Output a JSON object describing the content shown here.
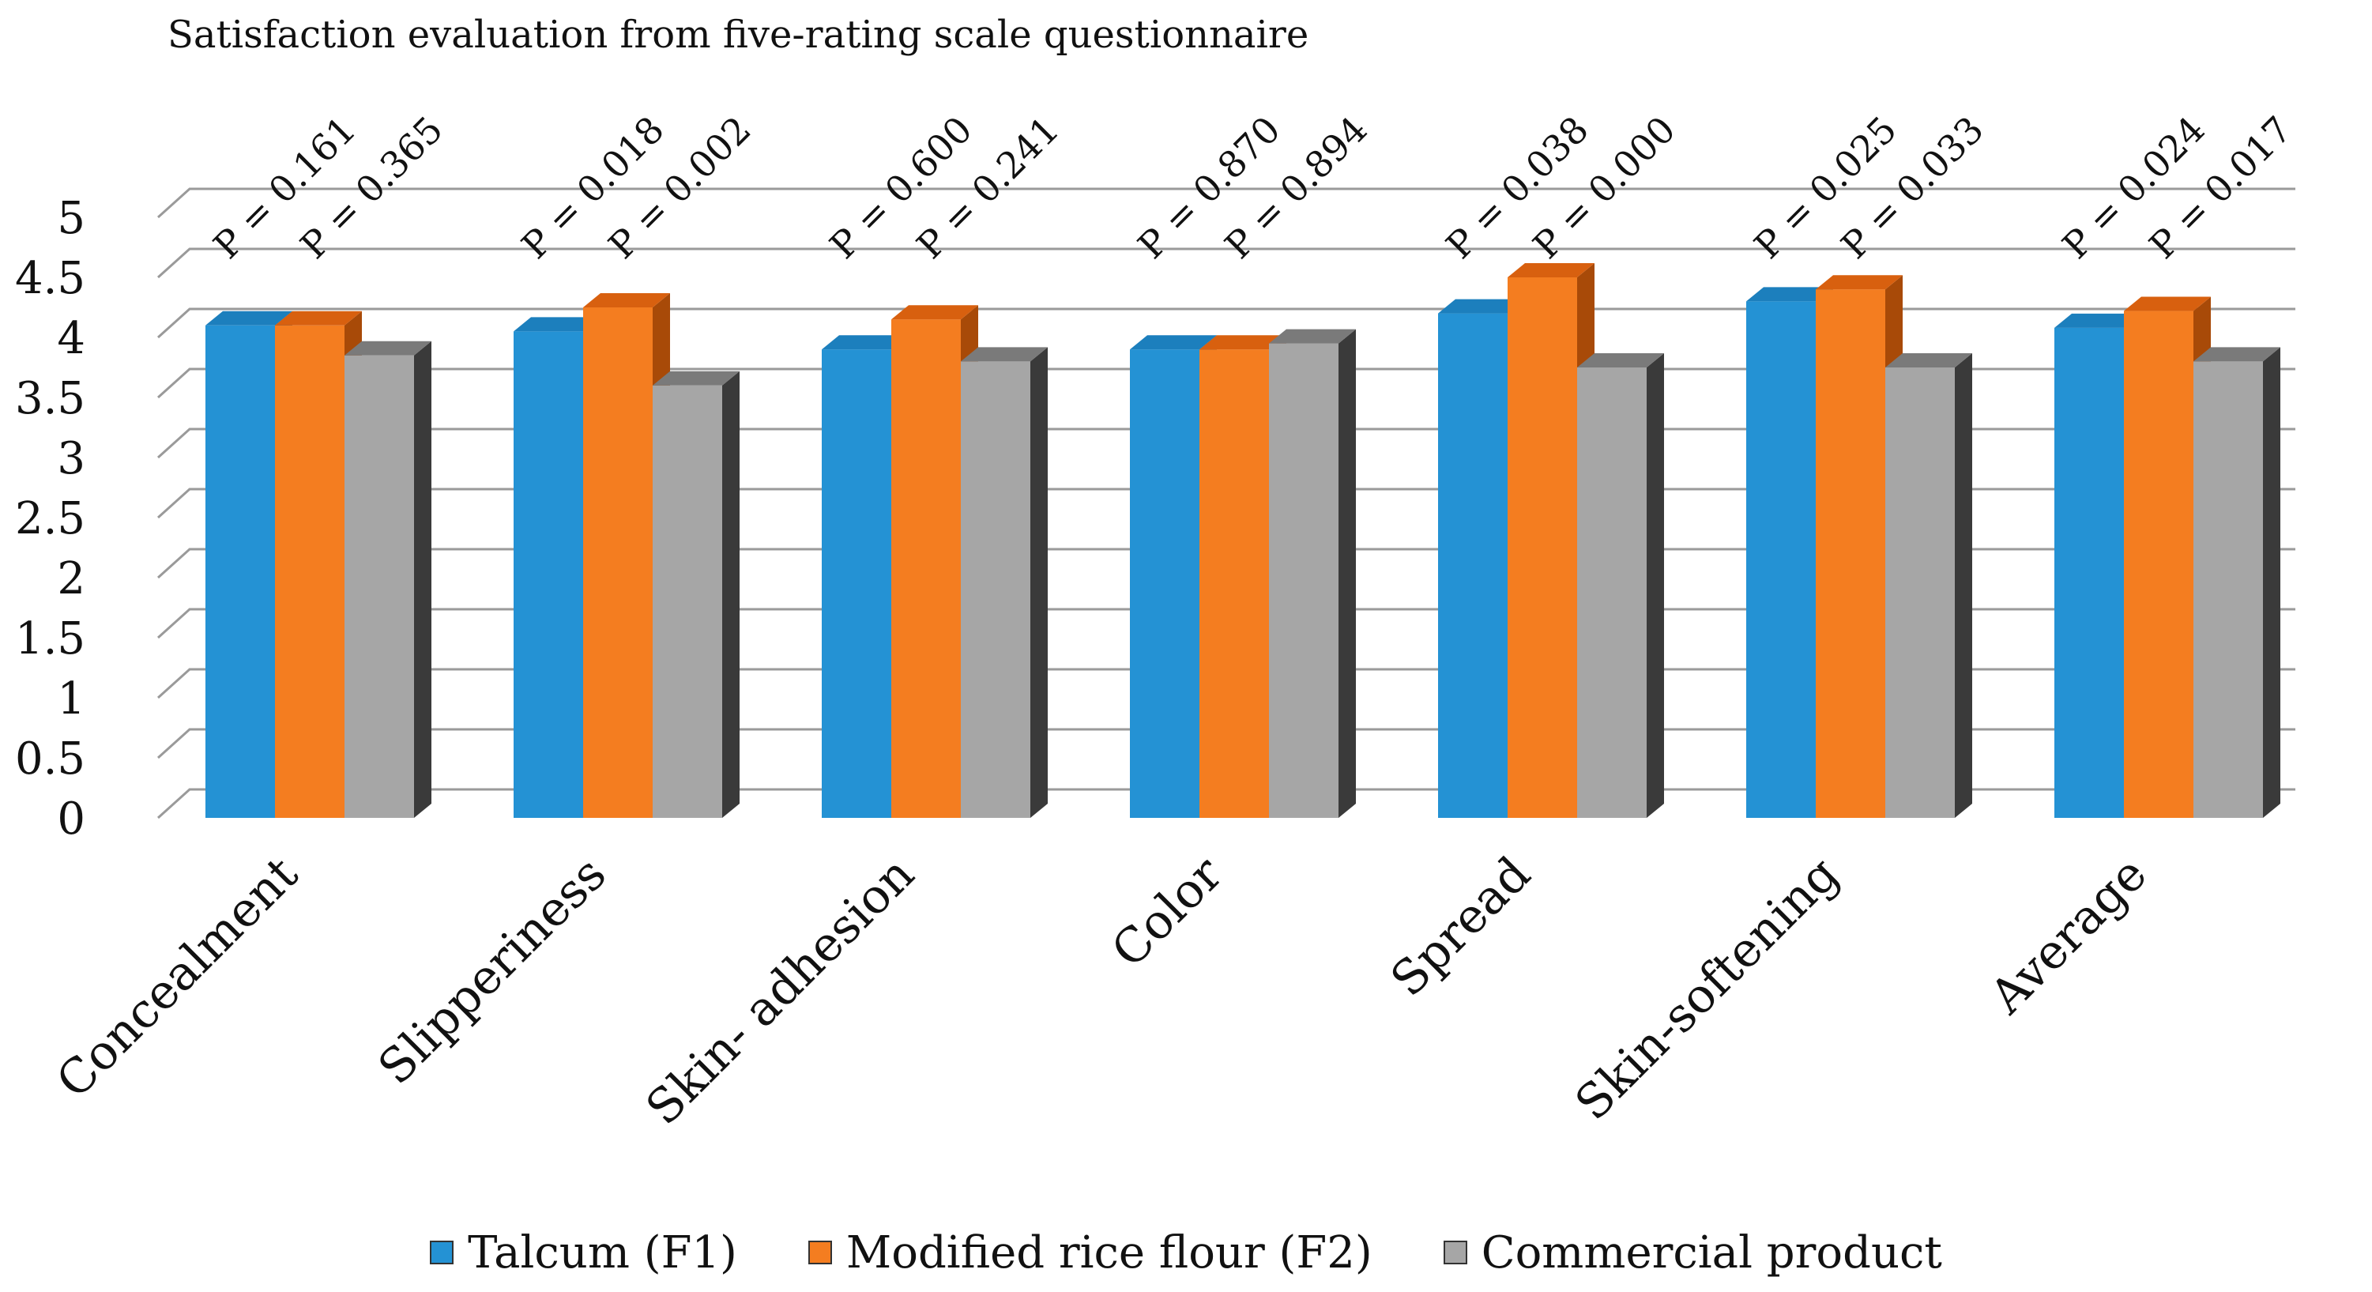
{
  "chart_data": {
    "type": "bar",
    "title": "Satisfaction evaluation from five-rating scale questionnaire",
    "categories": [
      "Concealment",
      "Slipperiness",
      "Skin- adhesion",
      "Color",
      "Spread",
      "Skin-softening",
      "Average"
    ],
    "series": [
      {
        "name": "Talcum (F1)",
        "values": [
          4.1,
          4.05,
          3.9,
          3.9,
          4.2,
          4.3,
          4.08
        ]
      },
      {
        "name": "Modified rice flour (F2)",
        "values": [
          4.1,
          4.25,
          4.15,
          3.9,
          4.5,
          4.4,
          4.22
        ]
      },
      {
        "name": "Commercial product",
        "values": [
          3.85,
          3.6,
          3.8,
          3.95,
          3.75,
          3.75,
          3.8
        ]
      }
    ],
    "p_values": [
      [
        "P = 0.161",
        "P = 0.365"
      ],
      [
        "P = 0.018",
        "P = 0.002"
      ],
      [
        "P = 0.600",
        "P = 0.241"
      ],
      [
        "P = 0.870",
        "P = 0.894"
      ],
      [
        "P = 0.038",
        "P = 0.000"
      ],
      [
        "P = 0.025",
        "P = 0.033"
      ],
      [
        "P = 0.024",
        "P = 0.017"
      ]
    ],
    "yticks": [
      "0",
      "0.5",
      "1",
      "1.5",
      "2",
      "2.5",
      "3",
      "3.5",
      "4",
      "4.5",
      "5"
    ],
    "ylim": [
      0,
      5
    ],
    "xlabel": "",
    "ylabel": "",
    "legend_position": "bottom",
    "grid": true
  },
  "colors": {
    "series": [
      "#2492d4",
      "#f47d20",
      "#a6a6a6"
    ],
    "series_dark": [
      "#155f8c",
      "#a84a08",
      "#3a3a3a"
    ],
    "series_top": [
      "#1c7fbd",
      "#d8600f",
      "#7a7a7a"
    ],
    "grid": "#9a9a9a"
  }
}
